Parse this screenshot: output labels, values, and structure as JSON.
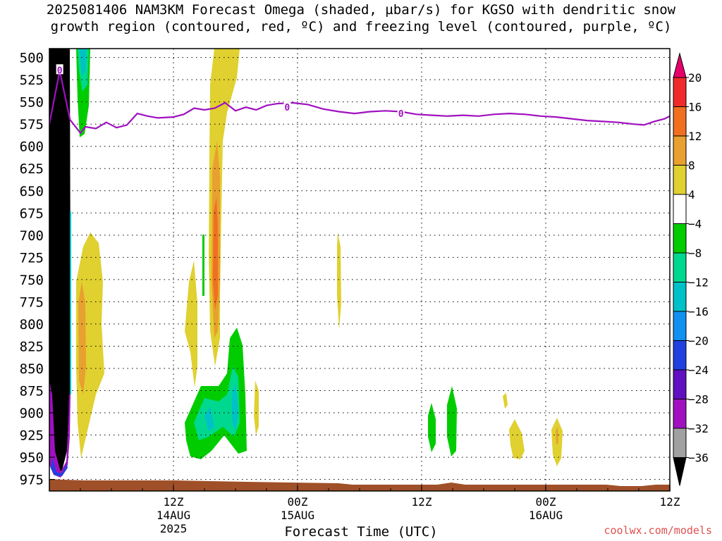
{
  "title": {
    "line1": "2025081406 NAM3KM Forecast Omega (shaded, µbar/s) for KGSO with dendritic snow",
    "line2": "growth region (contoured, red, ºC) and freezing level (contoured, purple, ºC)"
  },
  "credit": "coolwx.com/models",
  "chart_data": {
    "type": "heatmap",
    "xlabel": "Forecast Time (UTC)",
    "ylabel": "",
    "x_ticks": [
      {
        "label": "12Z",
        "sub1": "14AUG",
        "sub2": "2025",
        "hour": 18
      },
      {
        "label": "00Z",
        "sub1": "15AUG",
        "sub2": "",
        "hour": 30
      },
      {
        "label": "12Z",
        "sub1": "",
        "sub2": "",
        "hour": 42
      },
      {
        "label": "00Z",
        "sub1": "16AUG",
        "sub2": "",
        "hour": 54
      },
      {
        "label": "12Z",
        "sub1": "",
        "sub2": "",
        "hour": 66
      }
    ],
    "x_range_hours": [
      6,
      66
    ],
    "y_ticks": [
      500,
      525,
      550,
      575,
      600,
      625,
      650,
      675,
      700,
      725,
      750,
      775,
      800,
      825,
      850,
      875,
      900,
      925,
      950,
      975
    ],
    "y_range_hpa": [
      490,
      988
    ],
    "colorbar": {
      "labels": [
        "20",
        "16",
        "12",
        "8",
        "4",
        "−4",
        "−8",
        "−12",
        "−16",
        "−20",
        "−24",
        "−28",
        "−32",
        "−36"
      ],
      "colors": [
        "#e8006a",
        "#f02a2a",
        "#f07020",
        "#e8a030",
        "#e0d030",
        "#ffffff",
        "#00cc00",
        "#00d890",
        "#00c0c8",
        "#1090f0",
        "#2040e0",
        "#6010c0",
        "#a010c0",
        "#a0a0a0",
        "#000000"
      ]
    },
    "freezing_level_label": "0",
    "freezing_level": [
      {
        "hour": 6.0,
        "hpa": 575
      },
      {
        "hour": 7.0,
        "hpa": 515
      },
      {
        "hour": 8.0,
        "hpa": 570
      },
      {
        "hour": 9.0,
        "hpa": 585
      },
      {
        "hour": 9.5,
        "hpa": 578
      },
      {
        "hour": 10.5,
        "hpa": 580
      },
      {
        "hour": 11.5,
        "hpa": 573
      },
      {
        "hour": 12.5,
        "hpa": 579
      },
      {
        "hour": 13.5,
        "hpa": 576
      },
      {
        "hour": 14.5,
        "hpa": 563
      },
      {
        "hour": 15.5,
        "hpa": 566
      },
      {
        "hour": 16.5,
        "hpa": 568
      },
      {
        "hour": 18.0,
        "hpa": 567
      },
      {
        "hour": 19.0,
        "hpa": 564
      },
      {
        "hour": 20.0,
        "hpa": 557
      },
      {
        "hour": 21.0,
        "hpa": 559
      },
      {
        "hour": 22.0,
        "hpa": 557
      },
      {
        "hour": 23.0,
        "hpa": 551
      },
      {
        "hour": 24.0,
        "hpa": 560
      },
      {
        "hour": 25.0,
        "hpa": 556
      },
      {
        "hour": 26.0,
        "hpa": 559
      },
      {
        "hour": 27.0,
        "hpa": 554
      },
      {
        "hour": 28.0,
        "hpa": 552
      },
      {
        "hour": 29.5,
        "hpa": 551
      },
      {
        "hour": 31.0,
        "hpa": 553
      },
      {
        "hour": 32.5,
        "hpa": 558
      },
      {
        "hour": 34.0,
        "hpa": 561
      },
      {
        "hour": 35.5,
        "hpa": 563
      },
      {
        "hour": 37.0,
        "hpa": 561
      },
      {
        "hour": 38.5,
        "hpa": 560
      },
      {
        "hour": 40.0,
        "hpa": 561
      },
      {
        "hour": 41.5,
        "hpa": 564
      },
      {
        "hour": 43.0,
        "hpa": 565
      },
      {
        "hour": 44.5,
        "hpa": 566
      },
      {
        "hour": 46.0,
        "hpa": 565
      },
      {
        "hour": 47.5,
        "hpa": 566
      },
      {
        "hour": 49.0,
        "hpa": 564
      },
      {
        "hour": 50.5,
        "hpa": 563
      },
      {
        "hour": 52.0,
        "hpa": 564
      },
      {
        "hour": 53.5,
        "hpa": 566
      },
      {
        "hour": 55.0,
        "hpa": 567
      },
      {
        "hour": 56.5,
        "hpa": 569
      },
      {
        "hour": 58.0,
        "hpa": 571
      },
      {
        "hour": 59.5,
        "hpa": 572
      },
      {
        "hour": 61.0,
        "hpa": 573
      },
      {
        "hour": 62.5,
        "hpa": 575
      },
      {
        "hour": 63.5,
        "hpa": 576
      },
      {
        "hour": 64.5,
        "hpa": 572
      },
      {
        "hour": 65.5,
        "hpa": 569
      },
      {
        "hour": 66.0,
        "hpa": 566
      }
    ],
    "freezing_level_labels_at": [
      {
        "hour": 7.0,
        "hpa": 514
      },
      {
        "hour": 29.0,
        "hpa": 556
      },
      {
        "hour": 40.0,
        "hpa": 563
      }
    ]
  }
}
